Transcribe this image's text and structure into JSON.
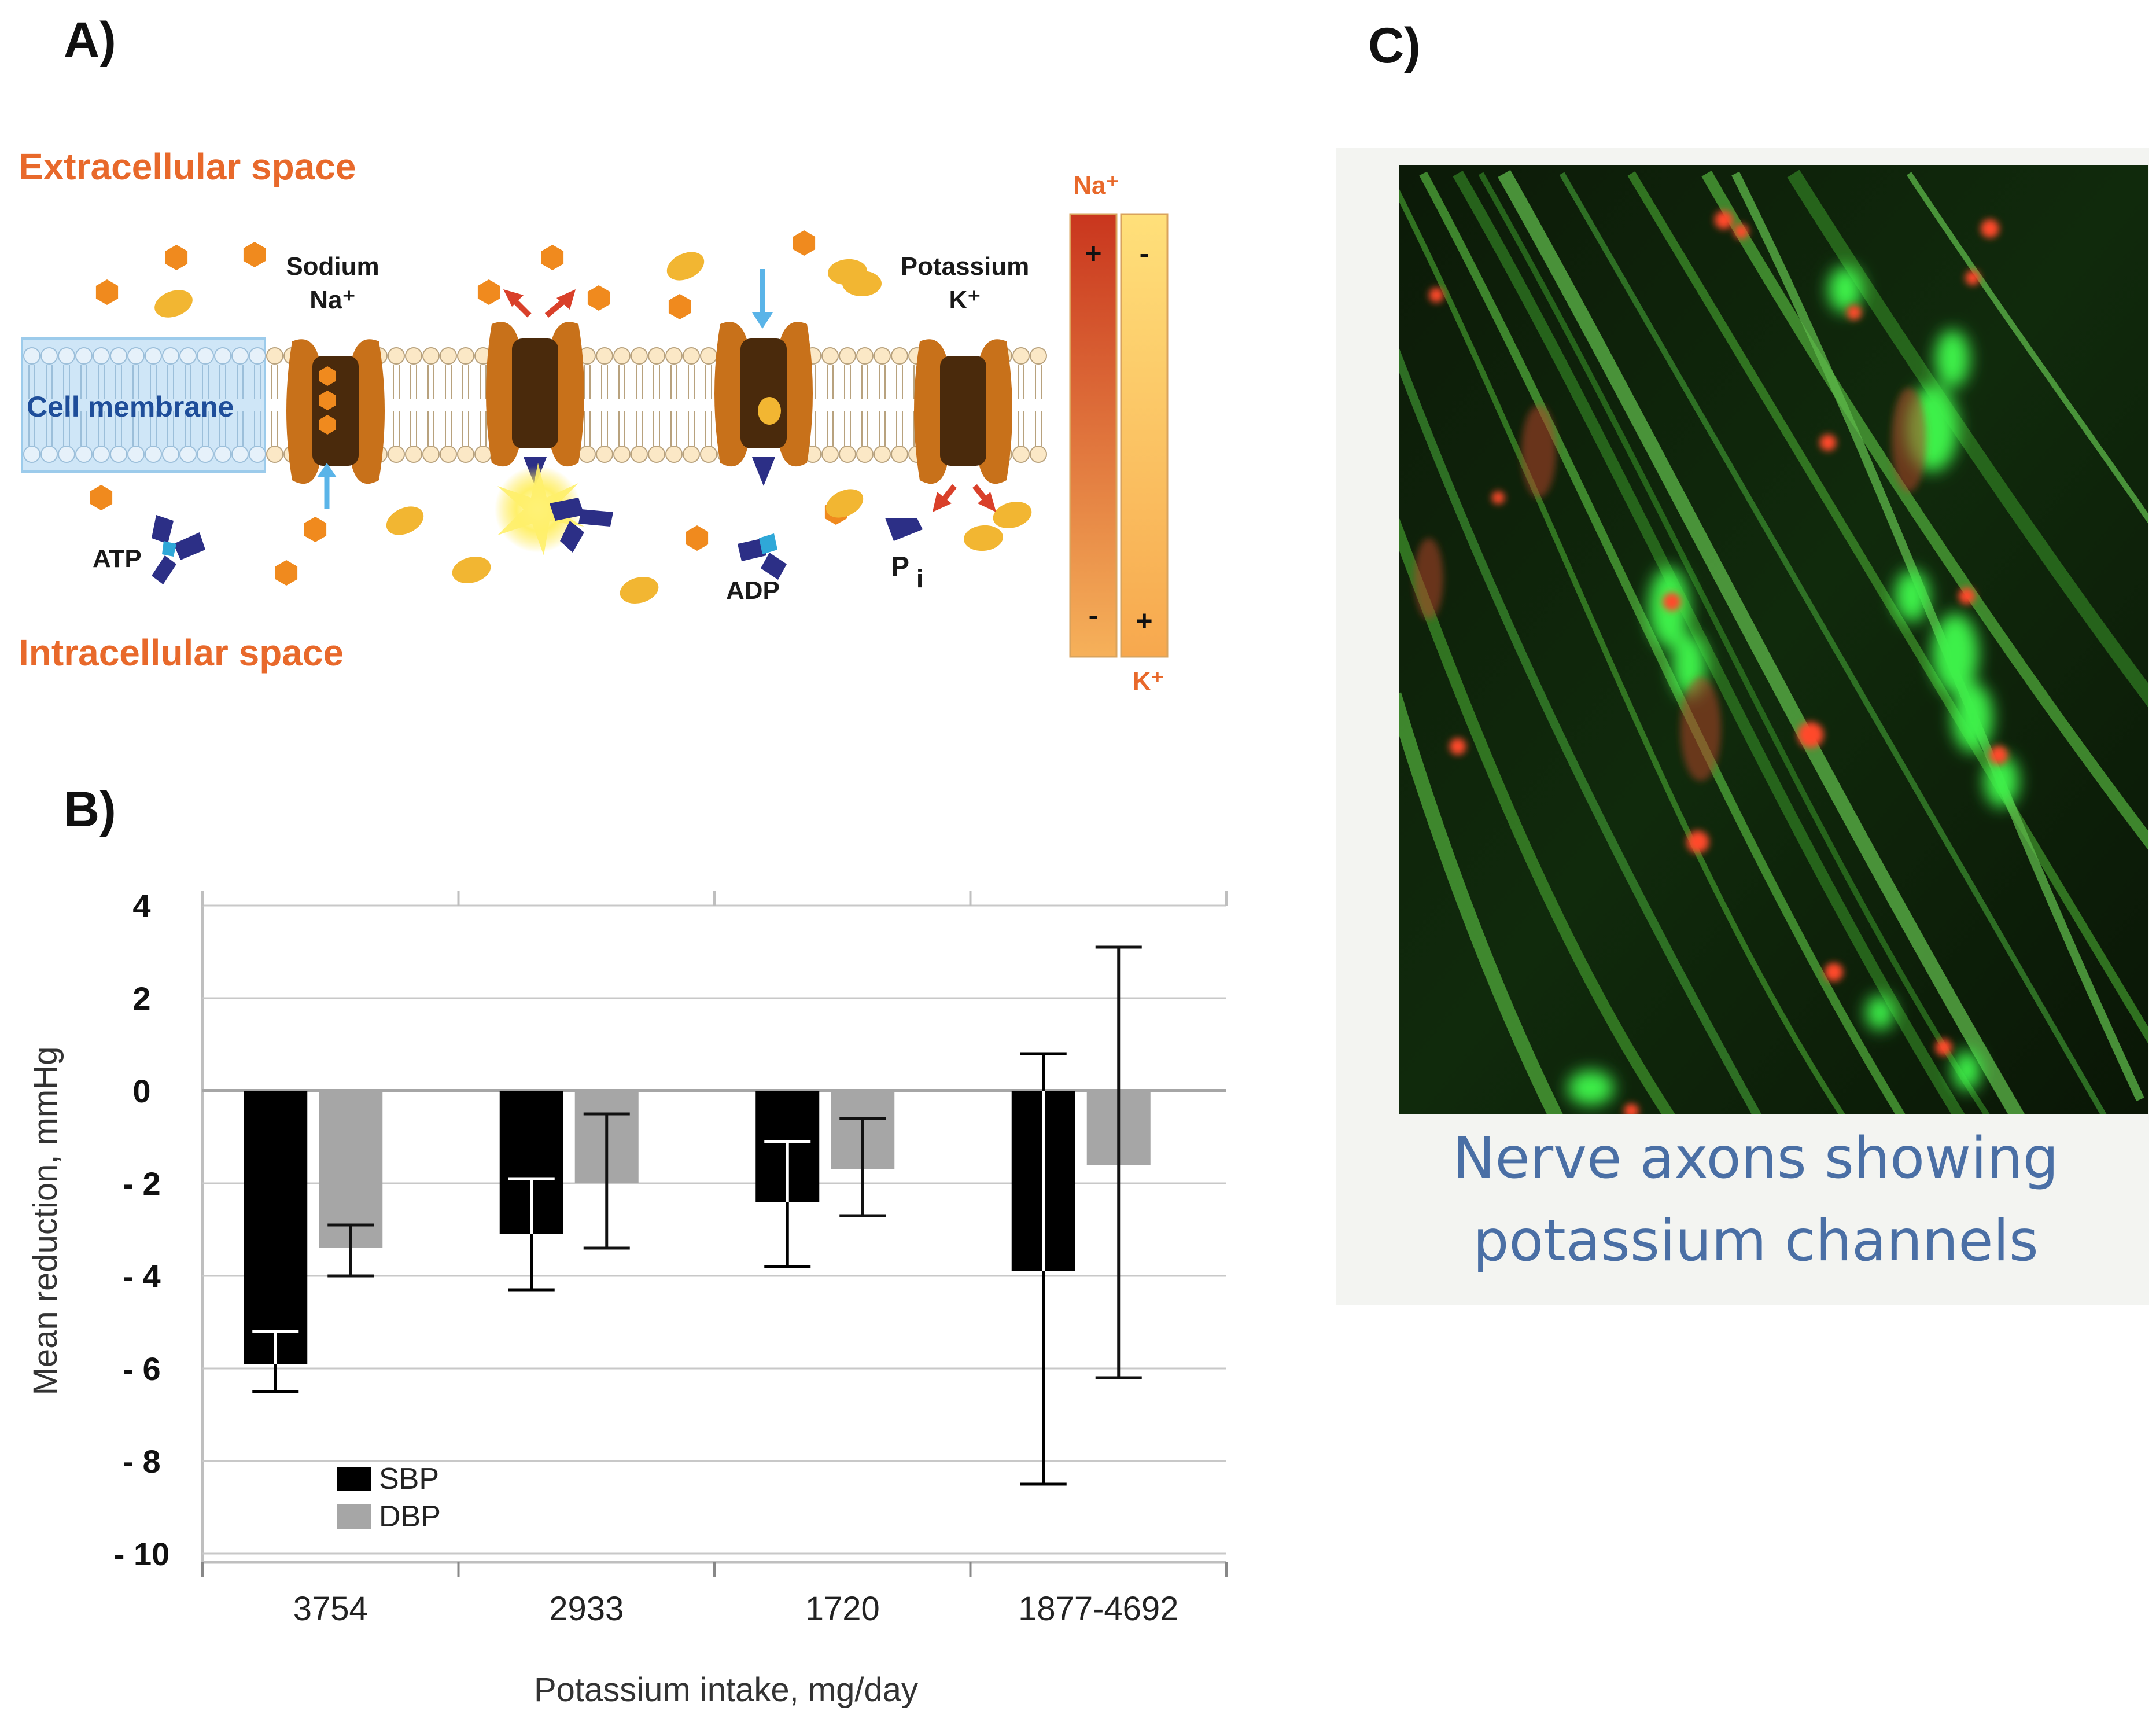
{
  "panels": {
    "a": {
      "label": "A)"
    },
    "b": {
      "label": "B)"
    },
    "c": {
      "label": "C)"
    }
  },
  "diagram": {
    "extracellular": "Extracellular space",
    "intracellular": "Intracellular space",
    "membrane": "Cell membrane",
    "sodium": "Sodium",
    "sodium_symbol": "Na⁺",
    "potassium": "Potassium",
    "potassium_symbol": "K⁺",
    "atp": "ATP",
    "adp": "ADP",
    "pi": "P",
    "pi_sub": "i",
    "gradient": {
      "na_label": "Na⁺",
      "k_label": "K⁺",
      "na_top": "+",
      "na_bottom": "-",
      "k_top": "-",
      "k_bottom": "+"
    },
    "colors": {
      "label_orange": "#E8692B",
      "membrane_blue": "#1F4E9A",
      "membrane_fill": "#CFE6F7",
      "pump_brown": "#C8711A",
      "pump_dark": "#4A2A0C",
      "sodium_ion": "#F08A1E",
      "potassium_ion": "#F2B632",
      "atp_blue": "#2C2F86",
      "arrow_blue": "#5AB4E8",
      "arrow_red": "#D9402A"
    }
  },
  "chart_data": {
    "type": "bar",
    "xlabel": "Potassium intake, mg/day",
    "ylabel": "Mean reduction, mmHg",
    "categories": [
      "3754",
      "2933",
      "1720",
      "1877-4692"
    ],
    "ylim": [
      -10,
      4
    ],
    "yticks": [
      4,
      2,
      0,
      -2,
      -4,
      -6,
      -8,
      -10
    ],
    "ytick_labels": [
      "4",
      "2",
      "0",
      "- 2",
      "- 4",
      "- 6",
      "- 8",
      "- 10"
    ],
    "grid": true,
    "legend_position": "bottom-left",
    "series": [
      {
        "name": "SBP",
        "color": "#000000",
        "values": [
          -5.9,
          -3.1,
          -2.4,
          -3.9
        ],
        "err_low": [
          -6.5,
          -4.3,
          -3.8,
          -8.5
        ],
        "err_high": [
          -5.2,
          -1.9,
          -1.1,
          0.8
        ]
      },
      {
        "name": "DBP",
        "color": "#A6A6A6",
        "values": [
          -3.4,
          -2.0,
          -1.7,
          -1.6
        ],
        "err_low": [
          -4.0,
          -3.4,
          -2.7,
          -6.2
        ],
        "err_high": [
          -2.9,
          -0.5,
          -0.6,
          3.1
        ]
      }
    ]
  },
  "micrograph": {
    "caption_line1": "Nerve axons showing",
    "caption_line2": "potassium channels",
    "caption_color": "#4A6FA5"
  }
}
